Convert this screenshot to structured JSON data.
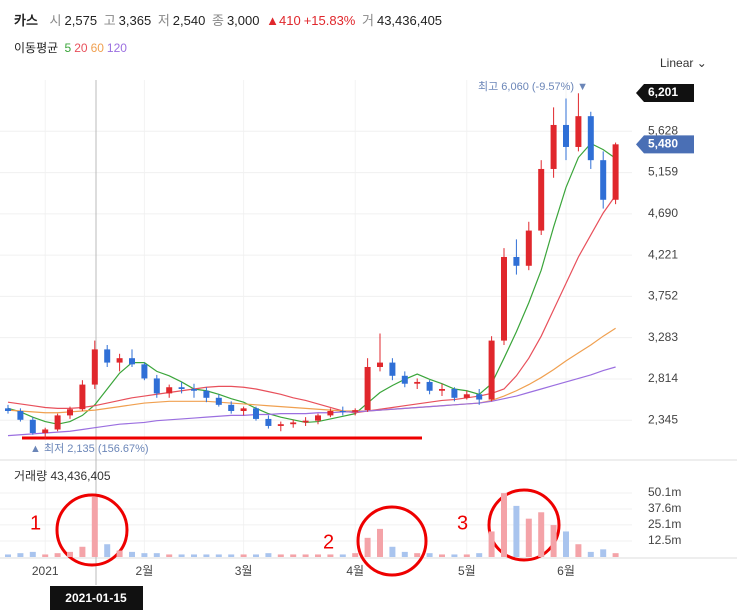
{
  "chart_data": {
    "type": "candlestick",
    "header": {
      "name": "카스",
      "open_label": "시",
      "open": "2,575",
      "high_label": "고",
      "high": "3,365",
      "low_label": "저",
      "low": "2,540",
      "close_label": "종",
      "close": "3,000",
      "change_arrow": "▲",
      "change": "410",
      "change_pct": "+15.83%",
      "volume_label": "거",
      "volume": "43,436,405"
    },
    "ma_title": "이동평균",
    "scale_button": "Linear",
    "high_marker": "최고 6,060 (-9.57%) ▼",
    "low_marker": "▲ 최저 2,135 (156.67%)",
    "volume_title": "거래량 43,436,405",
    "cursor_date": "2021-01-15",
    "annotations": [
      "1",
      "2",
      "3"
    ],
    "up_color": "#e0272c",
    "down_color": "#2f6fd6",
    "volume_up_color": "#f4a3a8",
    "volume_down_color": "#a9c4ee",
    "categories": [
      null,
      null,
      null,
      "2021",
      null,
      null,
      null,
      null,
      null,
      null,
      null,
      "2월",
      null,
      null,
      null,
      null,
      null,
      null,
      null,
      "3월",
      null,
      null,
      null,
      null,
      null,
      null,
      null,
      null,
      "4월",
      null,
      null,
      null,
      null,
      null,
      null,
      null,
      null,
      "5월",
      null,
      null,
      null,
      null,
      null,
      null,
      null,
      "6월",
      null,
      null,
      null,
      null
    ],
    "ohlc": [
      [
        2480,
        2520,
        2420,
        2450
      ],
      [
        2450,
        2480,
        2330,
        2350
      ],
      [
        2350,
        2380,
        2180,
        2200
      ],
      [
        2200,
        2260,
        2135,
        2240
      ],
      [
        2240,
        2420,
        2220,
        2400
      ],
      [
        2400,
        2500,
        2360,
        2470
      ],
      [
        2470,
        2800,
        2450,
        2750
      ],
      [
        2750,
        3250,
        2700,
        3150
      ],
      [
        3150,
        3200,
        2950,
        3000
      ],
      [
        3000,
        3100,
        2900,
        3050
      ],
      [
        3050,
        3150,
        2950,
        2980
      ],
      [
        2980,
        3000,
        2800,
        2820
      ],
      [
        2820,
        2860,
        2600,
        2650
      ],
      [
        2650,
        2750,
        2600,
        2720
      ],
      [
        2720,
        2780,
        2650,
        2700
      ],
      [
        2700,
        2760,
        2600,
        2680
      ],
      [
        2680,
        2720,
        2550,
        2600
      ],
      [
        2600,
        2640,
        2500,
        2520
      ],
      [
        2520,
        2560,
        2420,
        2450
      ],
      [
        2450,
        2500,
        2400,
        2480
      ],
      [
        2480,
        2500,
        2340,
        2360
      ],
      [
        2360,
        2400,
        2250,
        2280
      ],
      [
        2280,
        2330,
        2220,
        2300
      ],
      [
        2300,
        2350,
        2260,
        2320
      ],
      [
        2320,
        2380,
        2280,
        2340
      ],
      [
        2340,
        2420,
        2300,
        2400
      ],
      [
        2400,
        2480,
        2380,
        2450
      ],
      [
        2450,
        2500,
        2400,
        2440
      ],
      [
        2440,
        2480,
        2400,
        2460
      ],
      [
        2460,
        3050,
        2440,
        2950
      ],
      [
        2950,
        3330,
        2900,
        3000
      ],
      [
        3000,
        3050,
        2800,
        2850
      ],
      [
        2850,
        2900,
        2720,
        2760
      ],
      [
        2760,
        2820,
        2700,
        2780
      ],
      [
        2780,
        2800,
        2640,
        2680
      ],
      [
        2680,
        2760,
        2620,
        2700
      ],
      [
        2700,
        2720,
        2560,
        2600
      ],
      [
        2600,
        2680,
        2580,
        2640
      ],
      [
        2640,
        2700,
        2520,
        2580
      ],
      [
        2580,
        3300,
        2560,
        3250
      ],
      [
        3250,
        4300,
        3200,
        4200
      ],
      [
        4200,
        4400,
        4000,
        4100
      ],
      [
        4100,
        4600,
        4050,
        4500
      ],
      [
        4500,
        5300,
        4450,
        5200
      ],
      [
        5200,
        5900,
        5100,
        5700
      ],
      [
        5700,
        6000,
        5300,
        5450
      ],
      [
        5450,
        6060,
        5400,
        5800
      ],
      [
        5800,
        5850,
        5200,
        5300
      ],
      [
        5300,
        5400,
        4750,
        4850
      ],
      [
        4850,
        5500,
        4800,
        5480
      ]
    ],
    "volume": [
      2000000,
      3000000,
      4000000,
      2000000,
      3000000,
      4000000,
      8000000,
      47000000,
      10000000,
      5000000,
      4000000,
      3000000,
      3000000,
      2000000,
      2000000,
      2000000,
      2000000,
      2000000,
      2000000,
      2000000,
      2000000,
      3000000,
      2000000,
      2000000,
      2000000,
      2000000,
      2000000,
      2000000,
      3000000,
      15000000,
      22000000,
      8000000,
      4000000,
      3000000,
      3000000,
      2000000,
      2000000,
      2000000,
      3000000,
      20000000,
      50000000,
      40000000,
      30000000,
      35000000,
      25000000,
      20000000,
      10000000,
      4000000,
      6000000,
      3000000
    ],
    "series": [
      {
        "name": "5",
        "color": "#3aa53a",
        "values": [
          2480,
          2440,
          2380,
          2330,
          2300,
          2330,
          2400,
          2520,
          2700,
          2880,
          3000,
          3000,
          2900,
          2850,
          2780,
          2700,
          2680,
          2640,
          2590,
          2550,
          2480,
          2420,
          2380,
          2350,
          2320,
          2330,
          2360,
          2390,
          2420,
          2540,
          2660,
          2740,
          2810,
          2870,
          2810,
          2760,
          2700,
          2680,
          2640,
          2760,
          3050,
          3350,
          3680,
          4050,
          4540,
          4990,
          5330,
          5490,
          5420,
          5320
        ]
      },
      {
        "name": "20",
        "color": "#e8505b",
        "values": [
          2550,
          2530,
          2510,
          2490,
          2480,
          2480,
          2490,
          2510,
          2540,
          2570,
          2600,
          2620,
          2640,
          2660,
          2680,
          2700,
          2720,
          2730,
          2730,
          2720,
          2700,
          2670,
          2640,
          2600,
          2570,
          2530,
          2490,
          2450,
          2430,
          2450,
          2470,
          2490,
          2510,
          2530,
          2550,
          2570,
          2580,
          2600,
          2620,
          2650,
          2700,
          2850,
          3050,
          3300,
          3600,
          3900,
          4200,
          4450,
          4700,
          4900
        ]
      },
      {
        "name": "60",
        "color": "#f0a050",
        "values": [
          2460,
          2450,
          2440,
          2430,
          2430,
          2440,
          2450,
          2460,
          2480,
          2500,
          2520,
          2540,
          2550,
          2560,
          2560,
          2560,
          2560,
          2550,
          2540,
          2530,
          2520,
          2510,
          2500,
          2490,
          2480,
          2470,
          2460,
          2450,
          2450,
          2450,
          2460,
          2470,
          2480,
          2490,
          2500,
          2510,
          2520,
          2530,
          2540,
          2570,
          2620,
          2680,
          2750,
          2830,
          2920,
          3020,
          3110,
          3200,
          3300,
          3390
        ]
      },
      {
        "name": "120",
        "color": "#9b6fe0",
        "values": [
          2170,
          2180,
          2190,
          2200,
          2210,
          2220,
          2240,
          2260,
          2280,
          2300,
          2310,
          2320,
          2340,
          2350,
          2360,
          2370,
          2380,
          2390,
          2400,
          2400,
          2410,
          2410,
          2420,
          2420,
          2420,
          2430,
          2430,
          2440,
          2440,
          2450,
          2460,
          2470,
          2480,
          2490,
          2500,
          2510,
          2520,
          2530,
          2540,
          2560,
          2590,
          2620,
          2660,
          2700,
          2740,
          2780,
          2820,
          2860,
          2910,
          2950
        ]
      }
    ],
    "ylim": [
      1950,
      6120
    ],
    "yticks": [
      {
        "value": 2345,
        "label": "2,345"
      },
      {
        "value": 2814,
        "label": "2,814"
      },
      {
        "value": 3283,
        "label": "3,283"
      },
      {
        "value": 3752,
        "label": "3,752"
      },
      {
        "value": 4221,
        "label": "4,221"
      },
      {
        "value": 4690,
        "label": "4,690"
      },
      {
        "value": 5159,
        "label": "5,159"
      },
      {
        "value": 5628,
        "label": "5,628"
      }
    ],
    "price_tags": [
      {
        "value": 6201,
        "label": "6,201",
        "color": "#111111"
      },
      {
        "value": 5480,
        "label": "5,480",
        "color": "#4a6fb5"
      }
    ],
    "y2lim": [
      0,
      72000000
    ],
    "y2ticks": [
      {
        "value": 12500000,
        "label": "12.5m"
      },
      {
        "value": 25100000,
        "label": "25.1m"
      },
      {
        "value": 37600000,
        "label": "37.6m"
      },
      {
        "value": 50100000,
        "label": "50.1m"
      }
    ],
    "grid": true
  }
}
